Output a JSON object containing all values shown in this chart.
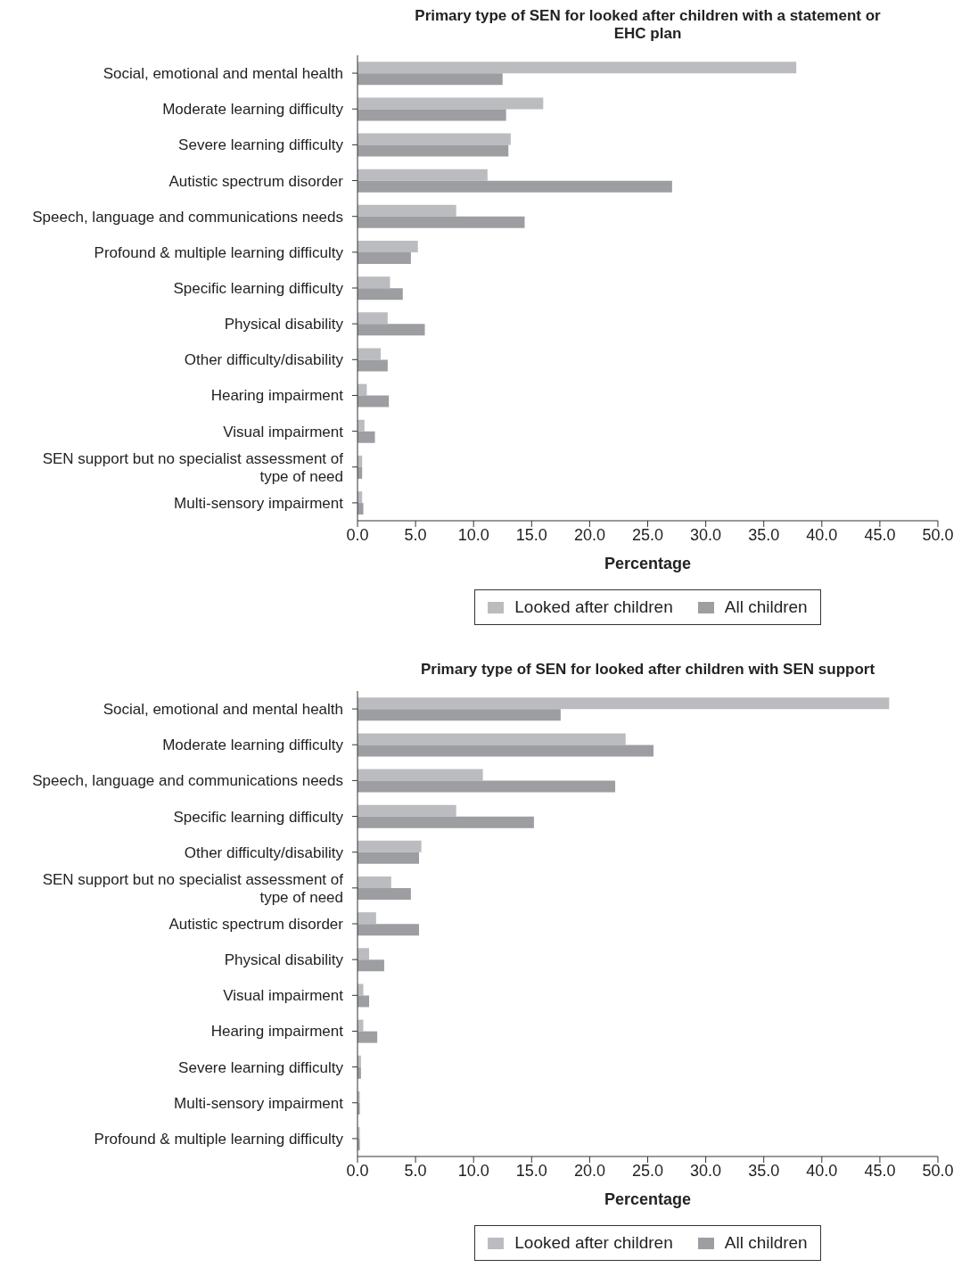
{
  "chart_data": [
    {
      "type": "bar",
      "orientation": "horizontal",
      "title": "Primary type of SEN for looked after children with a statement or EHC plan",
      "xlabel": "Percentage",
      "categories": [
        "Social, emotional and mental health",
        "Moderate learning difficulty",
        "Severe learning difficulty",
        "Autistic spectrum disorder",
        "Speech, language and communications needs",
        "Profound & multiple learning difficulty",
        "Specific learning difficulty",
        "Physical disability",
        "Other difficulty/disability",
        "Hearing impairment",
        "Visual impairment",
        "SEN support but no specialist assessment of type of need",
        "Multi-sensory impairment"
      ],
      "series": [
        {
          "name": "Looked after children",
          "color": "#bbbcc0",
          "values": [
            37.8,
            16.0,
            13.2,
            11.2,
            8.5,
            5.2,
            2.8,
            2.6,
            2.0,
            0.8,
            0.6,
            0.4,
            0.4
          ]
        },
        {
          "name": "All children",
          "color": "#9d9ea2",
          "values": [
            12.5,
            12.8,
            13.0,
            27.1,
            14.4,
            4.6,
            3.9,
            5.8,
            2.6,
            2.7,
            1.5,
            0.4,
            0.5
          ]
        }
      ],
      "xlim": [
        0,
        50
      ],
      "xticks": [
        {
          "value": 0,
          "label": "0.0"
        },
        {
          "value": 5,
          "label": "5.0"
        },
        {
          "value": 10,
          "label": "10.0"
        },
        {
          "value": 15,
          "label": "15.0"
        },
        {
          "value": 20,
          "label": "20.0"
        },
        {
          "value": 25,
          "label": "25.0"
        },
        {
          "value": 30,
          "label": "30.0"
        },
        {
          "value": 35,
          "label": "35.0"
        },
        {
          "value": 40,
          "label": "40.0"
        },
        {
          "value": 45,
          "label": "45.0"
        },
        {
          "value": 50,
          "label": "50.0"
        }
      ],
      "grid": false,
      "legend": "bottom"
    },
    {
      "type": "bar",
      "orientation": "horizontal",
      "title": "Primary type of SEN for looked after children with SEN support",
      "xlabel": "Percentage",
      "categories": [
        "Social, emotional and mental health",
        "Moderate learning difficulty",
        "Speech, language and communications needs",
        "Specific learning difficulty",
        "Other difficulty/disability",
        "SEN support but no specialist assessment of type of need",
        "Autistic spectrum disorder",
        "Physical disability",
        "Visual impairment",
        "Hearing impairment",
        "Severe learning difficulty",
        "Multi-sensory impairment",
        "Profound & multiple learning difficulty"
      ],
      "series": [
        {
          "name": "Looked after children",
          "color": "#bbbcc0",
          "values": [
            45.8,
            23.1,
            10.8,
            8.5,
            5.5,
            2.9,
            1.6,
            1.0,
            0.5,
            0.5,
            0.3,
            0.2,
            0.2
          ]
        },
        {
          "name": "All children",
          "color": "#9d9ea2",
          "values": [
            17.5,
            25.5,
            22.2,
            15.2,
            5.3,
            4.6,
            5.3,
            2.3,
            1.0,
            1.7,
            0.3,
            0.2,
            0.2
          ]
        }
      ],
      "xlim": [
        0,
        50
      ],
      "xticks": [
        {
          "value": 0,
          "label": "0.0"
        },
        {
          "value": 5,
          "label": "5.0"
        },
        {
          "value": 10,
          "label": "10.0"
        },
        {
          "value": 15,
          "label": "15.0"
        },
        {
          "value": 20,
          "label": "20.0"
        },
        {
          "value": 25,
          "label": "25.0"
        },
        {
          "value": 30,
          "label": "30.0"
        },
        {
          "value": 35,
          "label": "35.0"
        },
        {
          "value": 40,
          "label": "40.0"
        },
        {
          "value": 45,
          "label": "45.0"
        },
        {
          "value": 50,
          "label": "50.0"
        }
      ],
      "grid": false,
      "legend": "bottom"
    }
  ]
}
